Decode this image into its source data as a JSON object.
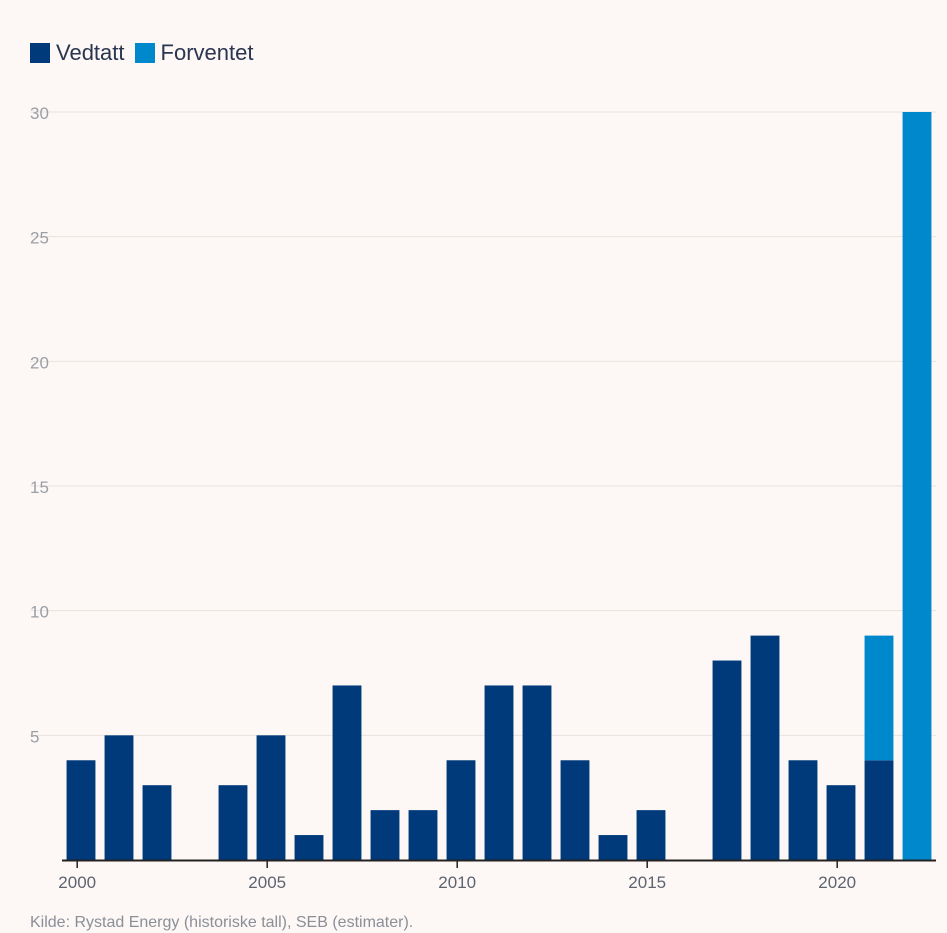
{
  "chart_data": {
    "type": "bar",
    "stacked": true,
    "title": "",
    "xlabel": "",
    "ylabel": "",
    "ylim": [
      0,
      30
    ],
    "yticks": [
      5,
      10,
      15,
      20,
      25,
      30
    ],
    "xticks": [
      2000,
      2005,
      2010,
      2015,
      2020
    ],
    "grid": true,
    "legend_position": "top-left",
    "categories": [
      2000,
      2001,
      2002,
      2003,
      2004,
      2005,
      2006,
      2007,
      2008,
      2009,
      2010,
      2011,
      2012,
      2013,
      2014,
      2015,
      2016,
      2017,
      2018,
      2019,
      2020,
      2021,
      2022
    ],
    "series": [
      {
        "name": "Vedtatt",
        "color": "#003a7a",
        "values": [
          4,
          5,
          3,
          0,
          3,
          5,
          1,
          7,
          2,
          2,
          4,
          7,
          7,
          4,
          1,
          2,
          0,
          8,
          9,
          4,
          3,
          4,
          0
        ]
      },
      {
        "name": "Forventet",
        "color": "#0088cc",
        "values": [
          0,
          0,
          0,
          0,
          0,
          0,
          0,
          0,
          0,
          0,
          0,
          0,
          0,
          0,
          0,
          0,
          0,
          0,
          0,
          0,
          0,
          5,
          30
        ]
      }
    ]
  },
  "source": "Kilde: Rystad Energy (historiske tall), SEB (estimater)."
}
